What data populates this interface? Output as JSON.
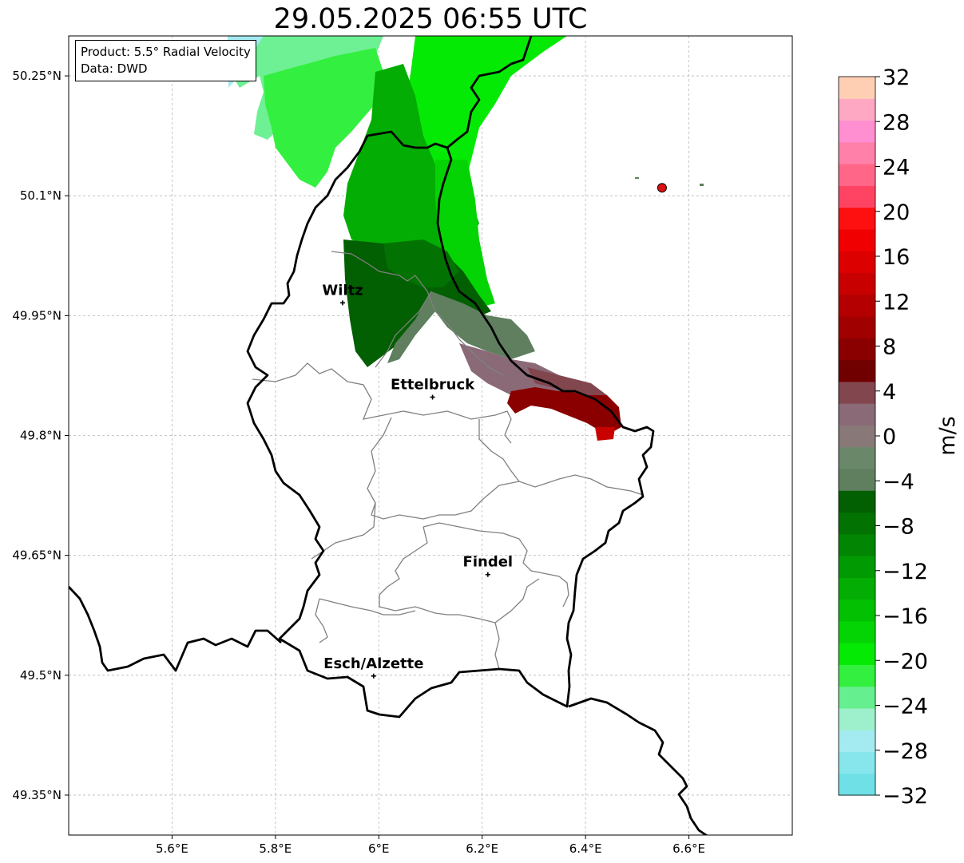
{
  "title": "29.05.2025 06:55 UTC",
  "info": {
    "product": "Product: 5.5° Radial Velocity",
    "data": "Data: DWD"
  },
  "axes": {
    "x_ticks": [
      "5.6°E",
      "5.8°E",
      "6°E",
      "6.2°E",
      "6.4°E",
      "6.6°E"
    ],
    "y_ticks": [
      "50.25°N",
      "50.1°N",
      "49.95°N",
      "49.8°N",
      "49.65°N",
      "49.5°N",
      "49.35°N"
    ],
    "lon_range": [
      5.4,
      6.8
    ],
    "lat_range": [
      49.3,
      50.3
    ]
  },
  "cities": [
    {
      "name": "Wiltz",
      "lon": 5.93,
      "lat": 49.966
    },
    {
      "name": "Ettelbruck",
      "lon": 6.104,
      "lat": 49.848
    },
    {
      "name": "Findel",
      "lon": 6.211,
      "lat": 49.626
    },
    {
      "name": "Esch/Alzette",
      "lon": 5.99,
      "lat": 49.499
    }
  ],
  "radar_site": {
    "lon": 6.548,
    "lat": 50.11
  },
  "colorbar": {
    "label": "m/s",
    "min": -32,
    "max": 32,
    "tick_labels": [
      "32",
      "28",
      "24",
      "20",
      "16",
      "12",
      "8",
      "4",
      "0",
      "−4",
      "−8",
      "−12",
      "−16",
      "−20",
      "−24",
      "−28",
      "−32"
    ],
    "colors": [
      "#6fe0e6",
      "#86e6ec",
      "#a3ebf0",
      "#9ef0cc",
      "#66ef8e",
      "#33ef3f",
      "#05ea05",
      "#04d404",
      "#03c003",
      "#03ad03",
      "#029a02",
      "#028502",
      "#027202",
      "#025f02",
      "#5f7f5f",
      "#6a876a",
      "#887878",
      "#8a6a76",
      "#82464f",
      "#700000",
      "#8a0000",
      "#a00000",
      "#b40000",
      "#c80000",
      "#dc0000",
      "#f00000",
      "#ff1010",
      "#ff4463",
      "#ff6688",
      "#ff80a8",
      "#ff8fd0",
      "#ffa8c4",
      "#ffcfb4"
    ]
  }
}
